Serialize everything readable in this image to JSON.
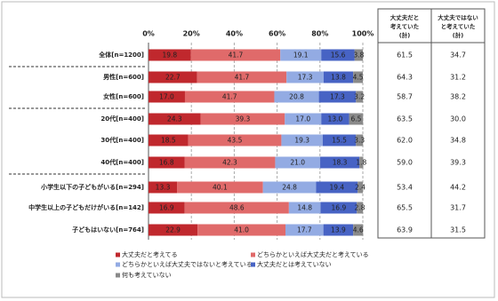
{
  "chart_data": {
    "type": "stacked-bar-horizontal",
    "categories": [
      "全体[n=1200]",
      "男性[n=600]",
      "女性[n=600]",
      "20代[n=400]",
      "30代[n=400]",
      "40代[n=400]",
      "小学生以下の子どもがいる[n=294]",
      "中学生以上の子どもだけがいる[n=142]",
      "子どもはいない[n=764]"
    ],
    "series": [
      {
        "name": "大丈夫だと考えてる",
        "color": "#c0282d",
        "values": [
          19.8,
          22.7,
          17.0,
          24.3,
          18.5,
          16.8,
          13.3,
          16.9,
          22.9
        ],
        "value_labels": [
          "19.8",
          "22.7",
          "17.0",
          "24.3",
          "18.5",
          "16.8",
          "13.3",
          "16.9",
          "22.9"
        ]
      },
      {
        "name": "どちらかといえば大丈夫だと考えている",
        "color": "#e06a6a",
        "values": [
          41.7,
          41.7,
          41.7,
          39.3,
          43.5,
          42.3,
          40.1,
          48.6,
          41.0
        ],
        "value_labels": [
          "41.7",
          "41.7",
          "41.7",
          "39.3",
          "43.5",
          "42.3",
          "40.1",
          "48.6",
          "41.0"
        ]
      },
      {
        "name": "どちらかといえば大丈夫ではないと考えている",
        "color": "#93abe3",
        "values": [
          19.1,
          17.3,
          20.8,
          17.0,
          19.3,
          21.0,
          24.8,
          14.8,
          17.7
        ],
        "value_labels": [
          "19.1",
          "17.3",
          "20.8",
          "17.0",
          "19.3",
          "21.0",
          "24.8",
          "14.8",
          "17.7"
        ]
      },
      {
        "name": "大丈夫だとは考えていない",
        "color": "#4763c4",
        "values": [
          15.6,
          13.8,
          17.3,
          13.0,
          15.5,
          18.3,
          19.4,
          16.9,
          13.9
        ],
        "value_labels": [
          "15.6",
          "13.8",
          "17.3",
          "13.0",
          "15.5",
          "18.3",
          "19.4",
          "16.9",
          "13.9"
        ]
      },
      {
        "name": "何も考えていない",
        "color": "#8a8a8a",
        "values": [
          3.8,
          4.5,
          3.2,
          6.5,
          3.3,
          1.8,
          2.4,
          2.8,
          4.6
        ],
        "value_labels": [
          "3.8",
          "4.5",
          "3.2",
          "6.5",
          "3.3",
          "1.8",
          "2.4",
          "2.8",
          "4.6"
        ]
      }
    ],
    "xlim": [
      0,
      100
    ],
    "xticks": [
      {
        "value": 0,
        "label": "0%"
      },
      {
        "value": 20,
        "label": "20%"
      },
      {
        "value": 40,
        "label": "40%"
      },
      {
        "value": 60,
        "label": "60%"
      },
      {
        "value": 80,
        "label": "80%"
      },
      {
        "value": 100,
        "label": "100%"
      }
    ],
    "grid": true
  },
  "table": {
    "headers": [
      [
        "大丈夫だと",
        "考えていた",
        "(計)"
      ],
      [
        "大丈夫ではない",
        "と考えていた",
        "(計)"
      ]
    ],
    "rows": [
      [
        "61.5",
        "34.7"
      ],
      [
        "64.3",
        "31.2"
      ],
      [
        "58.7",
        "38.2"
      ],
      [
        "63.5",
        "30.0"
      ],
      [
        "62.0",
        "34.8"
      ],
      [
        "59.0",
        "39.3"
      ],
      [
        "53.4",
        "44.2"
      ],
      [
        "65.5",
        "31.7"
      ],
      [
        "63.9",
        "31.5"
      ]
    ]
  }
}
